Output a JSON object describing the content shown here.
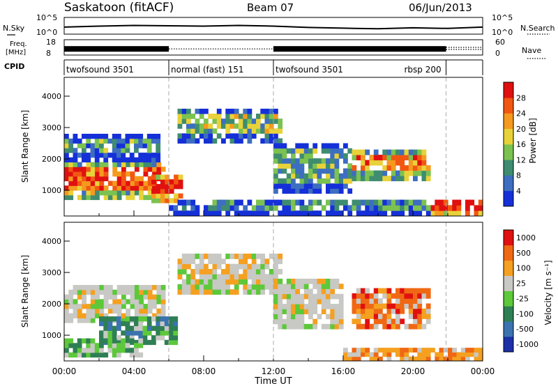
{
  "header": {
    "station": "Saskatoon (fitACF)",
    "beam": "Beam 07",
    "date": "06/Jun/2013"
  },
  "chart_data": [
    {
      "type": "line",
      "panel": "noise",
      "left_label": "N.Sky",
      "left_ticks": [
        "10^5",
        "10^0"
      ],
      "right_label": "N.Search",
      "right_ticks": [
        "10^5",
        "10^0"
      ],
      "legend": [
        {
          "label": "N.Sky",
          "style": "solid"
        },
        {
          "label": "N.Search",
          "style": "dotted"
        }
      ],
      "x": [
        0,
        2,
        4,
        6,
        8,
        10,
        12,
        14,
        16,
        18,
        20,
        22,
        24
      ],
      "series": [
        {
          "name": "N.Sky",
          "values": [
            2.1,
            2.4,
            2.6,
            2.5,
            2.4,
            2.6,
            2.4,
            2.0,
            1.8,
            1.6,
            1.9,
            1.7,
            2.1
          ]
        }
      ],
      "ylim": [
        0,
        5
      ]
    },
    {
      "type": "line",
      "panel": "frequency",
      "left_label_line1": "Freq.",
      "left_label_line2": "[MHz]",
      "left_ticks": [
        "18",
        "8"
      ],
      "right_label": "Nave",
      "right_ticks": [
        "60",
        "0"
      ],
      "ylim": [
        8,
        18
      ],
      "legend": [
        {
          "label": "Freq.",
          "style": "solid"
        },
        {
          "label": "Nave",
          "style": "dotted"
        }
      ],
      "segments": [
        {
          "start": 0,
          "end": 6.0,
          "freq": 12,
          "style": "dense"
        },
        {
          "start": 6.0,
          "end": 12.0,
          "freq": 12,
          "style": "dotted"
        },
        {
          "start": 12.0,
          "end": 21.9,
          "freq": 12,
          "style": "dense"
        },
        {
          "start": 21.9,
          "end": 24.0,
          "freq": 13,
          "style": "dotted"
        }
      ]
    },
    {
      "type": "table",
      "panel": "cpid",
      "label": "CPID",
      "programs": [
        {
          "name": "twofsound 3501",
          "start": 0,
          "end": 6.0
        },
        {
          "name": "normal (fast) 151",
          "start": 6.0,
          "end": 12.0
        },
        {
          "name": "twofsound 3501",
          "start": 12.0,
          "end": 21.9
        },
        {
          "name": "rbsp 200",
          "start": 21.9,
          "end": 24.0
        }
      ]
    },
    {
      "type": "heatmap",
      "panel": "power",
      "ylabel": "Slant Range [km]",
      "yticks": [
        "4000",
        "3000",
        "2000",
        "1000"
      ],
      "ylim": [
        180,
        4600
      ],
      "xlim": [
        0,
        24
      ],
      "colorbar": {
        "label": "Power [dB]",
        "ticks": [
          "28",
          "24",
          "20",
          "16",
          "12",
          "8",
          "4"
        ],
        "range": [
          0,
          32
        ],
        "colors": [
          "#1530d8",
          "#3d6ec0",
          "#3f8c70",
          "#7cc250",
          "#e8d23a",
          "#f59a1e",
          "#f25712",
          "#e01010"
        ]
      },
      "regions": [
        {
          "t0": 0.0,
          "t1": 5.8,
          "r0": 700,
          "r1": 1900,
          "level": 0.8
        },
        {
          "t0": 0.0,
          "t1": 5.5,
          "r0": 1900,
          "r1": 2800,
          "level": 0.3
        },
        {
          "t0": 5.0,
          "t1": 6.8,
          "r0": 600,
          "r1": 1500,
          "level": 0.95
        },
        {
          "t0": 6.5,
          "t1": 12.5,
          "r0": 2500,
          "r1": 3600,
          "level": 0.45
        },
        {
          "t0": 12.0,
          "t1": 16.5,
          "r0": 900,
          "r1": 2500,
          "level": 0.35
        },
        {
          "t0": 16.5,
          "t1": 21.0,
          "r0": 1300,
          "r1": 2300,
          "level": 0.7
        },
        {
          "t0": 21.0,
          "t1": 24.0,
          "r0": 180,
          "r1": 700,
          "level": 0.98
        },
        {
          "t0": 6.0,
          "t1": 21.0,
          "r0": 180,
          "r1": 700,
          "level": 0.25
        }
      ]
    },
    {
      "type": "heatmap",
      "panel": "velocity",
      "ylabel": "Slant Range [km]",
      "yticks": [
        "4000",
        "3000",
        "2000",
        "1000"
      ],
      "ylim": [
        180,
        4600
      ],
      "xlim": [
        0,
        24
      ],
      "xticks": [
        "00:00",
        "04:00",
        "08:00",
        "12:00",
        "16:00",
        "20:00",
        "00:00"
      ],
      "xlabel": "Time UT",
      "colorbar": {
        "label": "Velocity [m s⁻¹]",
        "ticks": [
          "1000",
          "500",
          "100",
          "25",
          "-25",
          "-100",
          "-500",
          "-1000"
        ],
        "range": [
          -1000,
          1000
        ],
        "colors": [
          "#1c2ea8",
          "#3b73b0",
          "#2f7f55",
          "#5cc83a",
          "#c8c8c4",
          "#f5a020",
          "#f06814",
          "#e01010"
        ]
      },
      "regions": [
        {
          "t0": 0.0,
          "t1": 5.8,
          "r0": 1400,
          "r1": 2600,
          "kind": "ground"
        },
        {
          "t0": 2.0,
          "t1": 6.5,
          "r0": 700,
          "r1": 1600,
          "kind": "toward"
        },
        {
          "t0": 0.0,
          "t1": 4.5,
          "r0": 300,
          "r1": 900,
          "kind": "toward_low"
        },
        {
          "t0": 6.5,
          "t1": 12.5,
          "r0": 2300,
          "r1": 3600,
          "kind": "ground"
        },
        {
          "t0": 12.0,
          "t1": 16.0,
          "r0": 1200,
          "r1": 2800,
          "kind": "ground"
        },
        {
          "t0": 16.5,
          "t1": 21.0,
          "r0": 1200,
          "r1": 2500,
          "kind": "away"
        },
        {
          "t0": 16.0,
          "t1": 24.0,
          "r0": 180,
          "r1": 600,
          "kind": "away_low"
        }
      ]
    }
  ]
}
